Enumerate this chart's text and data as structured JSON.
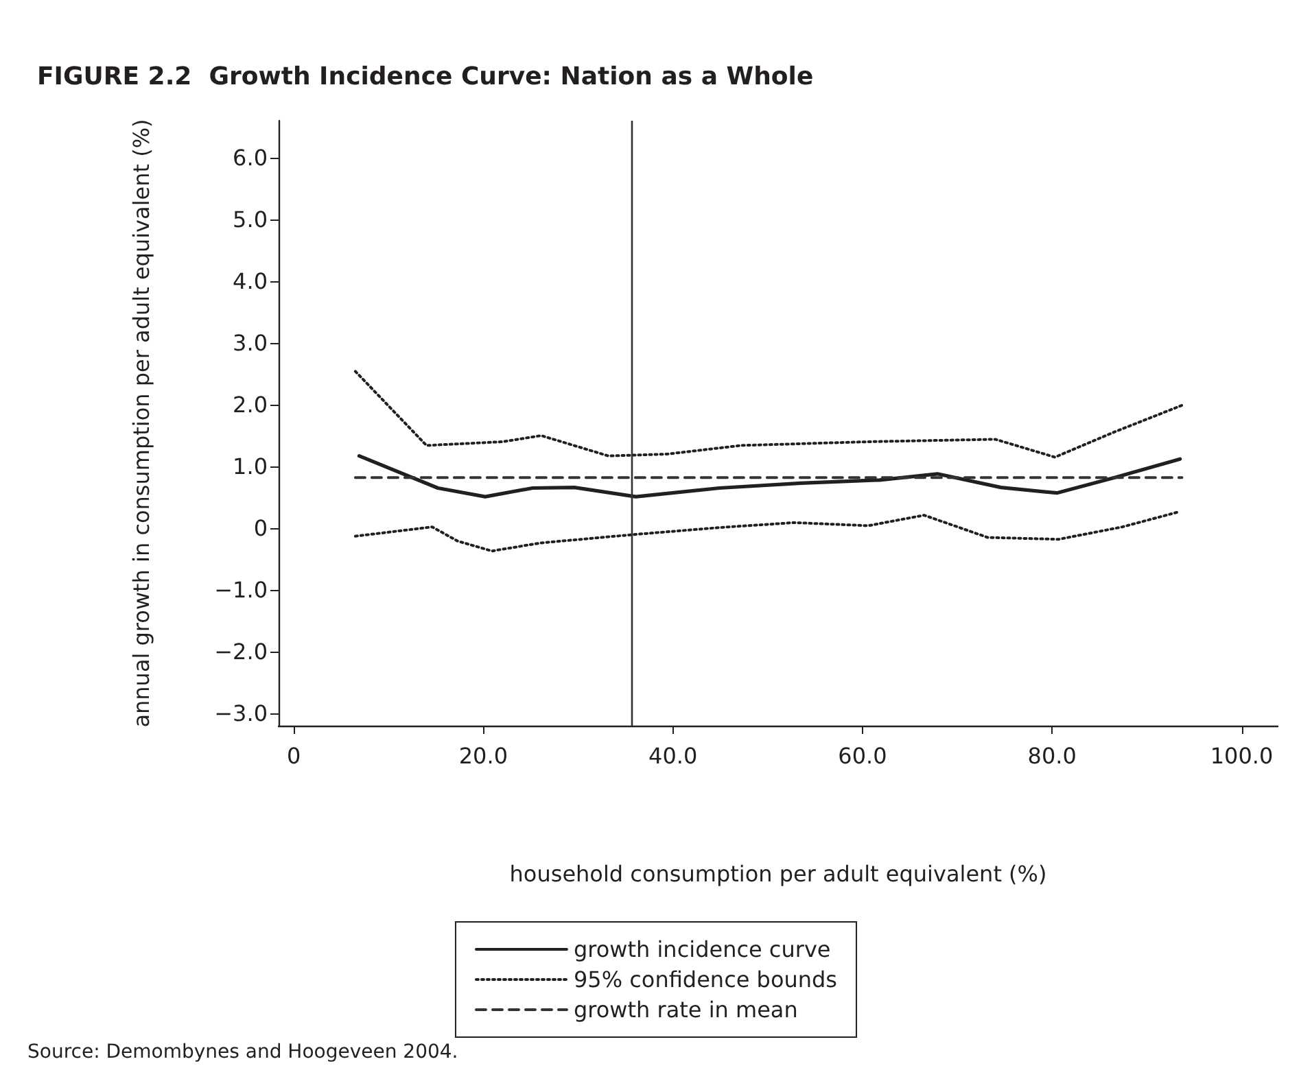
{
  "chart_data": {
    "type": "line",
    "title": "FIGURE 2.2  Growth Incidence Curve: Nation as a Whole",
    "xlabel": "household consumption per adult equivalent (%)",
    "ylabel": "annual growth in consumption per adult equivalent (%)",
    "annotations": [
      "Source: Demombynes and Hoogeveen 2004."
    ],
    "xlim": [
      -1.6,
      103.8
    ],
    "ylim": [
      -3.2,
      6.6
    ],
    "xticks": [
      0,
      {
        "value": 20,
        "label": "20.0"
      },
      {
        "value": 40,
        "label": "40.0"
      },
      {
        "value": 60,
        "label": "60.0"
      },
      {
        "value": 80,
        "label": "80.0"
      },
      {
        "value": 100,
        "label": "100.0"
      }
    ],
    "yticks": [
      {
        "value": -3,
        "label": "−3.0"
      },
      {
        "value": -2,
        "label": "−2.0"
      },
      {
        "value": -1,
        "label": "−1.0"
      },
      0,
      {
        "value": 1,
        "label": "1.0"
      },
      {
        "value": 2,
        "label": "2.0"
      },
      {
        "value": 3,
        "label": "3.0"
      },
      {
        "value": 4,
        "label": "4.0"
      },
      {
        "value": 5,
        "label": "5.0"
      },
      {
        "value": 6,
        "label": "6.0"
      }
    ],
    "grid": false,
    "legend": "bottom",
    "ref_lines": [
      {
        "axis": "x",
        "value": 35.7,
        "color": "#333333",
        "line_style": "solid"
      }
    ],
    "series": [
      {
        "name": "growth incidence curve",
        "color": "#231f20",
        "line_style": "solid",
        "x": [
          6.9,
          15.2,
          20.2,
          25.2,
          29.6,
          36.1,
          44.9,
          53.5,
          61.8,
          67.9,
          74.6,
          80.5,
          86.6,
          93.5
        ],
        "values": [
          1.17,
          0.65,
          0.51,
          0.65,
          0.66,
          0.51,
          0.65,
          0.73,
          0.78,
          0.88,
          0.66,
          0.57,
          0.82,
          1.12
        ]
      },
      {
        "name": "95% confidence bounds",
        "color": "#231f20",
        "line_style": "dotted",
        "x": [
          6.5,
          14.0,
          22.0,
          26.1,
          33.2,
          39.4,
          47.2,
          60.6,
          74.0,
          80.3,
          86.6,
          93.7
        ],
        "values": [
          2.54,
          1.34,
          1.4,
          1.5,
          1.17,
          1.2,
          1.34,
          1.4,
          1.44,
          1.15,
          1.56,
          1.99
        ]
      },
      {
        "color": "#231f20",
        "line_style": "dotted",
        "x": [
          6.5,
          14.6,
          17.3,
          20.9,
          26.0,
          36.1,
          44.9,
          52.8,
          60.6,
          66.5,
          73.2,
          80.7,
          87.4,
          93.5
        ],
        "values": [
          -0.13,
          0.02,
          -0.21,
          -0.37,
          -0.24,
          -0.1,
          0.01,
          0.09,
          0.04,
          0.21,
          -0.15,
          -0.18,
          0.02,
          0.27
        ]
      },
      {
        "name": "growth rate in mean",
        "color": "#333333",
        "line_style": "dashed",
        "x": [
          6.5,
          93.7
        ],
        "values": [
          0.82,
          0.82
        ]
      }
    ]
  }
}
